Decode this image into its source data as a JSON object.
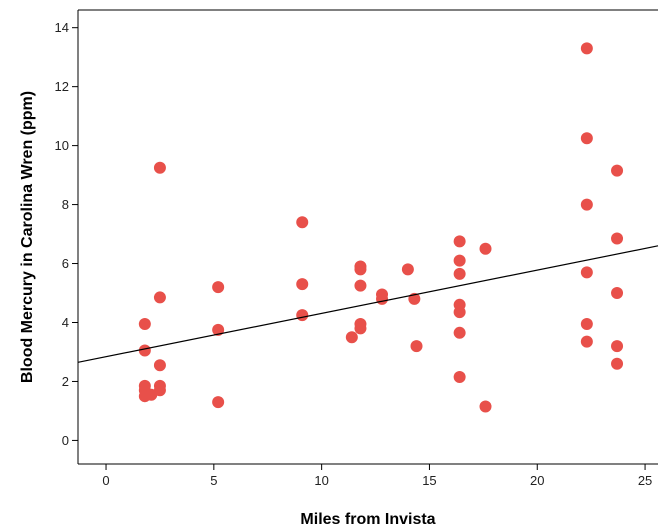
{
  "chart_data": {
    "type": "scatter",
    "title": "",
    "xlabel": "Miles from Invista",
    "ylabel": "Blood Mercury in Carolina Wren (ppm)",
    "xlim": [
      -1.3,
      25.6
    ],
    "ylim": [
      -0.8,
      14.6
    ],
    "xticks": [
      0,
      5,
      10,
      15,
      20,
      25
    ],
    "yticks": [
      0,
      2,
      4,
      6,
      8,
      10,
      12,
      14
    ],
    "grid": false,
    "point_color": "#e8504a",
    "line_color": "#000000",
    "points": [
      {
        "x": 1.8,
        "y": 3.95
      },
      {
        "x": 1.8,
        "y": 3.05
      },
      {
        "x": 1.8,
        "y": 1.85
      },
      {
        "x": 1.8,
        "y": 1.7
      },
      {
        "x": 1.8,
        "y": 1.5
      },
      {
        "x": 2.1,
        "y": 1.55
      },
      {
        "x": 2.5,
        "y": 9.25
      },
      {
        "x": 2.5,
        "y": 4.85
      },
      {
        "x": 2.5,
        "y": 2.55
      },
      {
        "x": 2.5,
        "y": 1.85
      },
      {
        "x": 2.5,
        "y": 1.7
      },
      {
        "x": 5.2,
        "y": 5.2
      },
      {
        "x": 5.2,
        "y": 3.75
      },
      {
        "x": 5.2,
        "y": 1.3
      },
      {
        "x": 9.1,
        "y": 7.4
      },
      {
        "x": 9.1,
        "y": 5.3
      },
      {
        "x": 9.1,
        "y": 4.25
      },
      {
        "x": 11.4,
        "y": 3.5
      },
      {
        "x": 11.8,
        "y": 5.9
      },
      {
        "x": 11.8,
        "y": 5.8
      },
      {
        "x": 11.8,
        "y": 5.25
      },
      {
        "x": 11.8,
        "y": 3.95
      },
      {
        "x": 11.8,
        "y": 3.8
      },
      {
        "x": 12.8,
        "y": 4.95
      },
      {
        "x": 12.8,
        "y": 4.8
      },
      {
        "x": 14.0,
        "y": 5.8
      },
      {
        "x": 14.3,
        "y": 4.8
      },
      {
        "x": 14.4,
        "y": 3.2
      },
      {
        "x": 16.4,
        "y": 6.75
      },
      {
        "x": 16.4,
        "y": 6.1
      },
      {
        "x": 16.4,
        "y": 5.65
      },
      {
        "x": 16.4,
        "y": 4.6
      },
      {
        "x": 16.4,
        "y": 4.35
      },
      {
        "x": 16.4,
        "y": 3.65
      },
      {
        "x": 16.4,
        "y": 2.15
      },
      {
        "x": 17.6,
        "y": 6.5
      },
      {
        "x": 17.6,
        "y": 1.15
      },
      {
        "x": 22.3,
        "y": 13.3
      },
      {
        "x": 22.3,
        "y": 10.25
      },
      {
        "x": 22.3,
        "y": 8.0
      },
      {
        "x": 22.3,
        "y": 5.7
      },
      {
        "x": 22.3,
        "y": 3.95
      },
      {
        "x": 22.3,
        "y": 3.35
      },
      {
        "x": 23.7,
        "y": 9.15
      },
      {
        "x": 23.7,
        "y": 6.85
      },
      {
        "x": 23.7,
        "y": 5.0
      },
      {
        "x": 23.7,
        "y": 3.2
      },
      {
        "x": 23.7,
        "y": 2.6
      }
    ],
    "fit_line": {
      "x1": -1.3,
      "y1": 2.65,
      "x2": 25.6,
      "y2": 6.6
    }
  }
}
